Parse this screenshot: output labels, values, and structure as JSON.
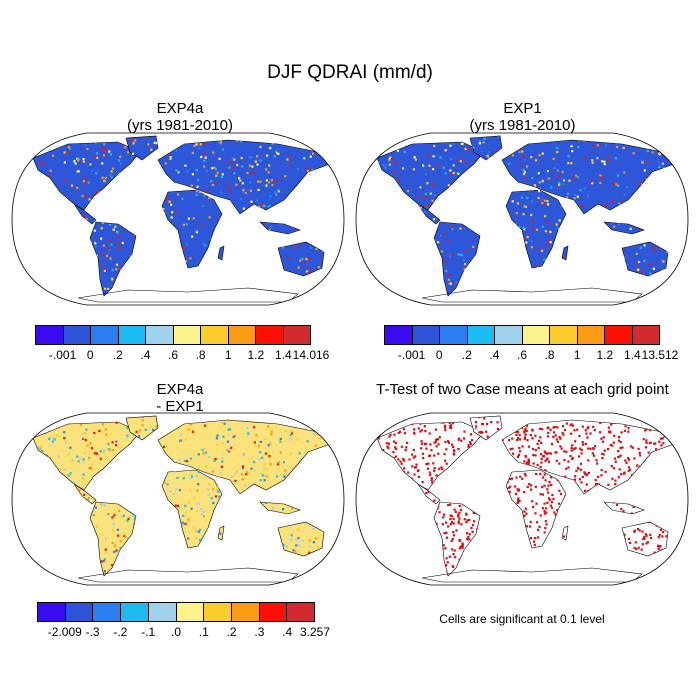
{
  "figure": {
    "title": "DJF QDRAI (mm/d)"
  },
  "panels": [
    {
      "title": "EXP4a",
      "subtitle": "(yrs 1981-2010)"
    },
    {
      "title": "EXP1",
      "subtitle": "(yrs 1981-2010)"
    },
    {
      "title": "EXP4a",
      "subtitle": "- EXP1"
    },
    {
      "title": "T-Test of two Case means at each grid point",
      "subtitle": ""
    }
  ],
  "colorbars": [
    {
      "colors": [
        "#3a0bf0",
        "#2c53d8",
        "#2a7ef0",
        "#1cbcf2",
        "#9fd0ec",
        "#fcf38c",
        "#fccb2c",
        "#fb9a15",
        "#fb1006",
        "#d12b2f"
      ],
      "labels": [
        "-.001",
        "0",
        ".2",
        ".4",
        ".6",
        ".8",
        "1",
        "1.2",
        "1.4",
        "14.016"
      ]
    },
    {
      "colors": [
        "#3a0bf0",
        "#2c53d8",
        "#2a7ef0",
        "#1cbcf2",
        "#9fd0ec",
        "#fcf38c",
        "#fccb2c",
        "#fb9a15",
        "#fb1006",
        "#d12b2f"
      ],
      "labels": [
        "-.001",
        "0",
        ".2",
        ".4",
        ".6",
        ".8",
        "1",
        "1.2",
        "1.4",
        "13.512"
      ]
    },
    {
      "colors": [
        "#3a0bf0",
        "#2c53d8",
        "#2a7ef0",
        "#1cbcf2",
        "#9fd0ec",
        "#fcf38c",
        "#fccb2c",
        "#fb9a15",
        "#fb1006",
        "#d12b2f"
      ],
      "labels": [
        "-2.009",
        "-.3",
        "-.2",
        "-.1",
        ".0",
        ".1",
        ".2",
        ".3",
        ".4",
        "3.257"
      ]
    }
  ],
  "significance_note": "Cells are significant at 0.1 level",
  "map_colors": {
    "panel1": "#2d57d8",
    "panel2": "#2d57d8",
    "panel3": "#fbe27a",
    "panel4": "#e4080a",
    "outline": "#000000"
  }
}
